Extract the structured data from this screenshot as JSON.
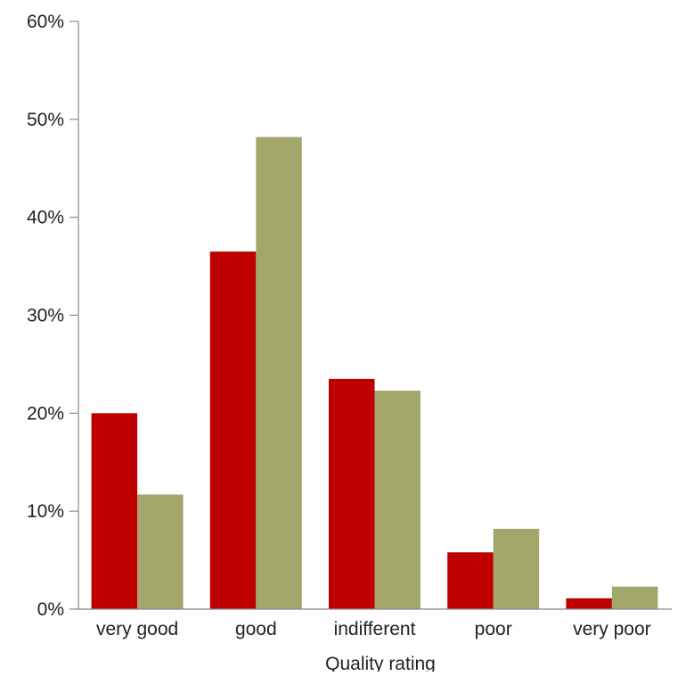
{
  "chart_data": {
    "type": "bar",
    "title": "",
    "xlabel": "Quality rating",
    "ylabel": "",
    "ylim": [
      0,
      0.6
    ],
    "yticks": [
      0,
      0.1,
      0.2,
      0.3,
      0.4,
      0.5,
      0.6
    ],
    "ytick_labels": [
      "0%",
      "10%",
      "20%",
      "30%",
      "40%",
      "50%",
      "60%"
    ],
    "categories": [
      "very good",
      "good",
      "indifferent",
      "poor",
      "very poor"
    ],
    "series": [
      {
        "values": [
          0.2,
          0.365,
          0.235,
          0.058,
          0.011
        ],
        "color": "#c00000"
      },
      {
        "values": [
          0.117,
          0.482,
          0.223,
          0.082,
          0.023
        ],
        "color": "#a3a76b"
      }
    ],
    "grid": false,
    "legend": "none"
  }
}
